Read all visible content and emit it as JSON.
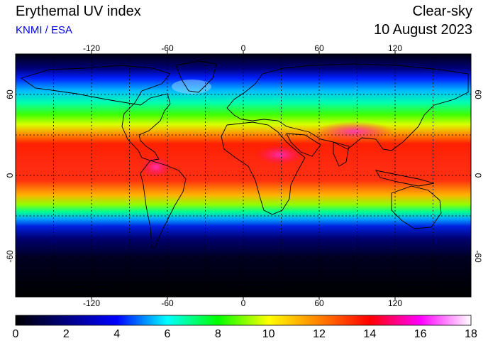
{
  "header": {
    "title": "Erythemal UV index",
    "credit": "KNMI / ESA",
    "mode": "Clear-sky",
    "date": "10 August 2023"
  },
  "map": {
    "lon_ticks": [
      "-120",
      "-60",
      "0",
      "60",
      "120"
    ],
    "lat_ticks": [
      "60",
      "0",
      "-60"
    ],
    "lon_tick_values": [
      -120,
      -60,
      0,
      60,
      120
    ],
    "lat_tick_values": [
      60,
      0,
      -60
    ],
    "grid_lon_step": 30,
    "grid_lat_step": 30,
    "lon_range": [
      -180,
      180
    ],
    "lat_range": [
      -90,
      90
    ]
  },
  "colorbar": {
    "labels": [
      "0",
      "2",
      "4",
      "6",
      "8",
      "10",
      "12",
      "14",
      "16",
      "18"
    ],
    "range": [
      0,
      18
    ],
    "colors": [
      "#000000",
      "#000080",
      "#0000ff",
      "#00ffff",
      "#00ff00",
      "#ffff00",
      "#ff8000",
      "#ff0000",
      "#ff00ff",
      "#ffffff"
    ]
  }
}
